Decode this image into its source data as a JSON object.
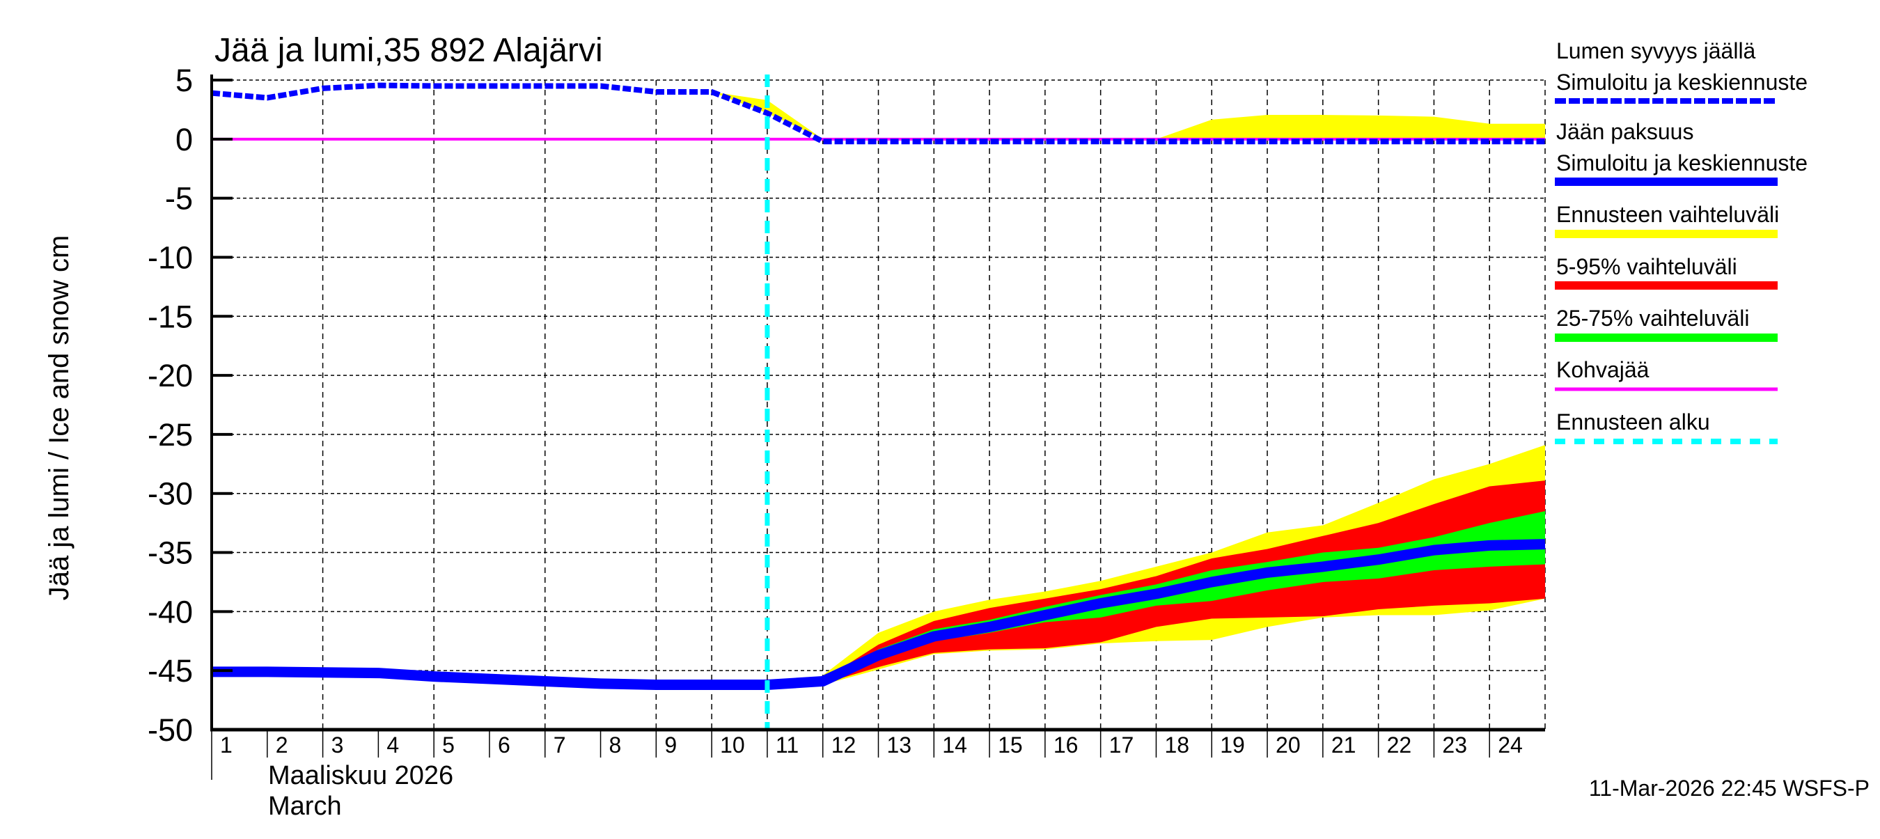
{
  "chart_data": {
    "type": "area",
    "title": "Jää ja lumi,35 892 Alajärvi",
    "ylabel": "Jää ja lumi / Ice and snow    cm",
    "xlabel_fi": "Maaliskuu 2026",
    "xlabel_en": "March",
    "timestamp": "11-Mar-2026 22:45 WSFS-P",
    "ylim": [
      -50,
      5
    ],
    "xlim": [
      1,
      25
    ],
    "y_ticks": [
      "5",
      "0",
      "-5",
      "-10",
      "-15",
      "-20",
      "-25",
      "-30",
      "-35",
      "-40",
      "-45",
      "-50"
    ],
    "x_ticks": [
      "1",
      "2",
      "3",
      "4",
      "5",
      "6",
      "7",
      "8",
      "9",
      "10",
      "11",
      "12",
      "13",
      "14",
      "15",
      "16",
      "17",
      "18",
      "19",
      "20",
      "21",
      "22",
      "23",
      "24"
    ],
    "grid": true,
    "legend_placement": "right",
    "forecast_start_day": 11,
    "colors": {
      "snow": "#0000ff",
      "ice": "#0000ff",
      "range": "#ffff00",
      "p5_95": "#ff0000",
      "p25_75": "#00ff00",
      "slush": "#ff00ff",
      "forecast_start": "#00ffff"
    },
    "legend": [
      {
        "label1": "Lumen syvyys jäällä",
        "label2": "Simuloitu ja keskiennuste",
        "style": "dashed",
        "color": "#0000ff"
      },
      {
        "label1": "Jään paksuus",
        "label2": "Simuloitu ja keskiennuste",
        "style": "solid",
        "color": "#0000ff"
      },
      {
        "label1": "Ennusteen vaihteluväli",
        "style": "band",
        "color": "#ffff00"
      },
      {
        "label1": "5-95% vaihteluväli",
        "style": "band",
        "color": "#ff0000"
      },
      {
        "label1": "25-75% vaihteluväli",
        "style": "band",
        "color": "#00ff00"
      },
      {
        "label1": "Kohvajää",
        "style": "thin",
        "color": "#ff00ff"
      },
      {
        "label1": "Ennusteen alku",
        "style": "dashed-wide",
        "color": "#00ffff"
      }
    ],
    "days": [
      1,
      2,
      3,
      4,
      5,
      6,
      7,
      8,
      9,
      10,
      11,
      12,
      13,
      14,
      15,
      16,
      17,
      18,
      19,
      20,
      21,
      22,
      23,
      24,
      25
    ],
    "snow_depth": [
      3.9,
      3.5,
      4.3,
      4.55,
      4.5,
      4.5,
      4.5,
      4.5,
      4.0,
      4.0,
      2.2,
      0,
      0,
      0,
      0,
      0,
      0,
      0,
      0,
      0,
      0,
      0,
      0,
      0,
      0
    ],
    "snow_range_days": [
      10,
      11,
      12,
      13,
      14,
      15,
      16,
      17,
      18,
      19,
      20,
      21,
      22,
      23,
      24,
      25
    ],
    "snow_range_high": [
      4.0,
      3.3,
      0,
      0,
      0,
      0,
      0,
      0,
      0,
      1.65,
      2.05,
      2.05,
      2.0,
      1.9,
      1.3,
      1.3
    ],
    "ice_thickness": [
      -45.1,
      -45.1,
      -45.15,
      -45.2,
      -45.5,
      -45.7,
      -45.9,
      -46.1,
      -46.2,
      -46.2,
      -46.2,
      -45.9,
      -43.7,
      -42.1,
      -41.3,
      -40.3,
      -39.3,
      -38.5,
      -37.5,
      -36.7,
      -36.2,
      -35.6,
      -34.8,
      -34.4,
      -34.3
    ],
    "slush": 0,
    "ice_band_days": [
      12,
      13,
      14,
      15,
      16,
      17,
      18,
      19,
      20,
      21,
      22,
      23,
      24,
      25
    ],
    "ice_range_high": [
      -45.4,
      -41.8,
      -40,
      -39,
      -38.3,
      -37.4,
      -36.2,
      -35,
      -33.3,
      -32.7,
      -30.8,
      -28.8,
      -27.5,
      -25.9
    ],
    "ice_p95": [
      -45.8,
      -42.8,
      -40.8,
      -39.7,
      -38.9,
      -38.1,
      -37,
      -35.5,
      -34.7,
      -33.6,
      -32.5,
      -30.9,
      -29.4,
      -28.9
    ],
    "ice_p75": [
      -45.9,
      -43.2,
      -41.5,
      -40.7,
      -39.6,
      -38.6,
      -37.7,
      -36.5,
      -35.8,
      -35,
      -34.6,
      -33.7,
      -32.5,
      -31.5
    ],
    "ice_p25": [
      -46,
      -44.1,
      -42.5,
      -41.8,
      -40.9,
      -40.5,
      -39.5,
      -39.1,
      -38.2,
      -37.5,
      -37.2,
      -36.5,
      -36.2,
      -36
    ],
    "ice_p5": [
      -46.1,
      -44.7,
      -43.5,
      -43.2,
      -43.1,
      -42.6,
      -41.3,
      -40.6,
      -40.5,
      -40.4,
      -39.8,
      -39.5,
      -39.3,
      -38.9
    ],
    "ice_range_low": [
      -46.2,
      -44.9,
      -43.6,
      -43.3,
      -43.2,
      -42.7,
      -42.5,
      -42.4,
      -41.3,
      -40.5,
      -40.3,
      -40.3,
      -39.9,
      -38.9
    ]
  }
}
